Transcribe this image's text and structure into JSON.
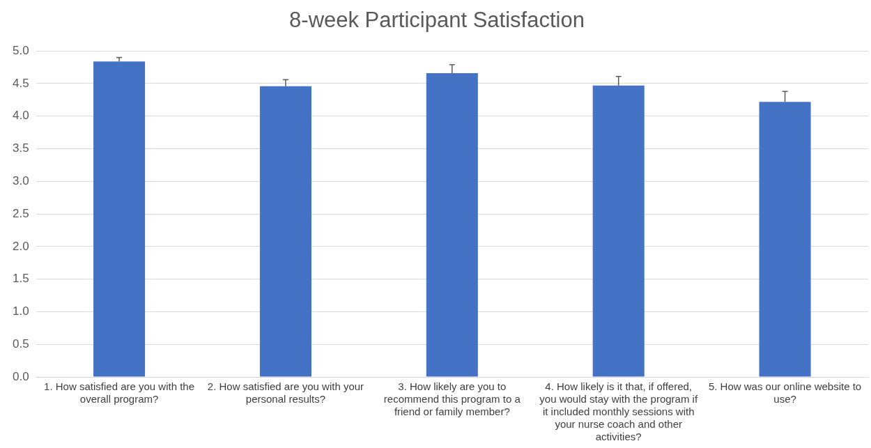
{
  "chart_data": {
    "type": "bar",
    "title": "8-week Participant Satisfaction",
    "categories": [
      "1. How satisfied are you with the overall program?",
      "2. How satisfied are you with your personal results?",
      "3. How likely are you to recommend this program to a friend or family member?",
      "4. How likely is it that, if offered, you would stay with the program if it included monthly sessions with your nurse coach and other activities?",
      "5. How was our online website to use?"
    ],
    "values": [
      4.84,
      4.46,
      4.66,
      4.47,
      4.22
    ],
    "errors": [
      [
        4.84,
        4.9
      ],
      [
        4.46,
        4.56
      ],
      [
        4.66,
        4.79
      ],
      [
        4.47,
        4.61
      ],
      [
        4.22,
        4.38
      ]
    ],
    "color": "#4472c4",
    "ylim": [
      0,
      5
    ],
    "yticks": [
      {
        "value": 0,
        "label": "0.0"
      },
      {
        "value": 0.5,
        "label": "0.5"
      },
      {
        "value": 1,
        "label": "1.0"
      },
      {
        "value": 1.5,
        "label": "1.5"
      },
      {
        "value": 2,
        "label": "2.0"
      },
      {
        "value": 2.5,
        "label": "2.5"
      },
      {
        "value": 3,
        "label": "3.0"
      },
      {
        "value": 3.5,
        "label": "3.5"
      },
      {
        "value": 4,
        "label": "4.0"
      },
      {
        "value": 4.5,
        "label": "4.5"
      },
      {
        "value": 5,
        "label": "5.0"
      }
    ],
    "grid": "y"
  }
}
